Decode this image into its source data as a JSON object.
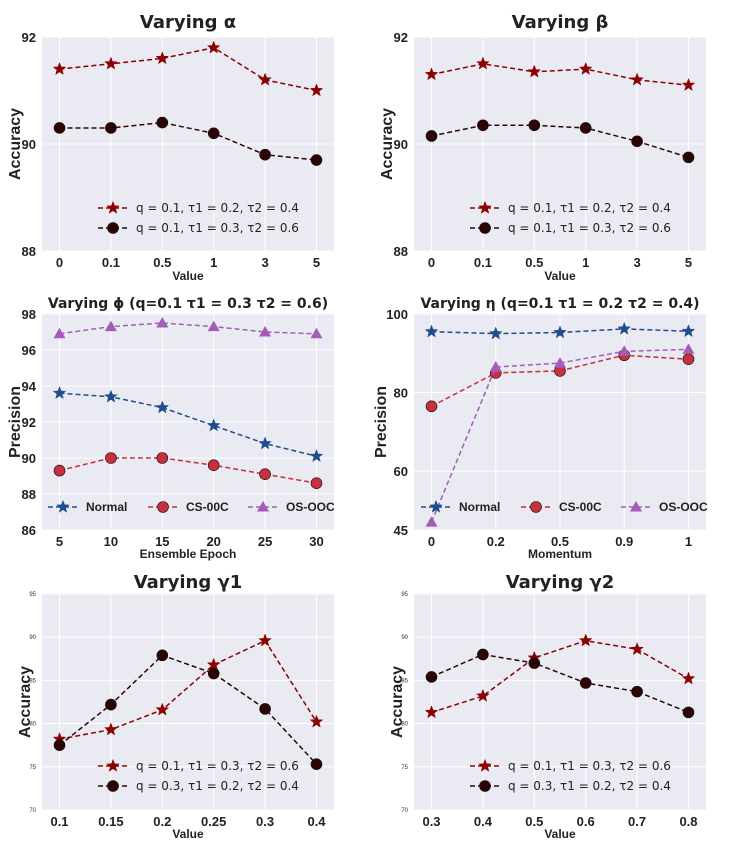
{
  "chart_data": [
    {
      "type": "line",
      "title": "Varying α",
      "xlabel": "Value",
      "ylabel": "Accuracy",
      "categories": [
        "0",
        "0.1",
        "0.5",
        "1",
        "3",
        "5"
      ],
      "ylim": [
        88,
        92
      ],
      "yticks": [
        "88",
        "90",
        "92"
      ],
      "series": [
        {
          "name": "q = 0.1, τ1 = 0.2, τ2 = 0.4",
          "marker": "star",
          "color": "#8b0000",
          "values": [
            91.4,
            91.5,
            91.6,
            91.8,
            91.2,
            91.0
          ]
        },
        {
          "name": "q = 0.1, τ1 = 0.3, τ2 = 0.6",
          "marker": "circle",
          "color": "#2b0505",
          "values": [
            90.3,
            90.3,
            90.4,
            90.2,
            89.8,
            89.7
          ]
        }
      ],
      "legend": "lower-center"
    },
    {
      "type": "line",
      "title": "Varying β",
      "xlabel": "Value",
      "ylabel": "Accuracy",
      "categories": [
        "0",
        "0.1",
        "0.5",
        "1",
        "3",
        "5"
      ],
      "ylim": [
        88,
        92
      ],
      "yticks": [
        "88",
        "90",
        "92"
      ],
      "series": [
        {
          "name": "q = 0.1, τ1 = 0.2, τ2 = 0.4",
          "marker": "star",
          "color": "#8b0000",
          "values": [
            91.3,
            91.5,
            91.35,
            91.4,
            91.2,
            91.1
          ]
        },
        {
          "name": "q = 0.1, τ1 = 0.3, τ2 = 0.6",
          "marker": "circle",
          "color": "#2b0505",
          "values": [
            90.15,
            90.35,
            90.35,
            90.3,
            90.05,
            89.75
          ]
        }
      ],
      "legend": "lower-center"
    },
    {
      "type": "line",
      "title": "Varying ϕ (q=0.1 τ1 = 0.3 τ2 = 0.6)",
      "xlabel": "Ensemble Epoch",
      "ylabel": "Precision",
      "categories": [
        "5",
        "10",
        "15",
        "20",
        "25",
        "30"
      ],
      "ylim": [
        86,
        98
      ],
      "yticks": [
        "86",
        "88",
        "90",
        "92",
        "94",
        "96",
        "98"
      ],
      "series": [
        {
          "name": "Normal",
          "marker": "star",
          "color": "#1f4e8c",
          "values": [
            93.6,
            93.4,
            92.8,
            91.8,
            90.8,
            90.1
          ]
        },
        {
          "name": "CS-00C",
          "marker": "circle",
          "color": "#c8303f",
          "values": [
            89.3,
            90.0,
            90.0,
            89.6,
            89.1,
            88.6
          ]
        },
        {
          "name": "OS-OOC",
          "marker": "triangle",
          "color": "#a45cb8",
          "values": [
            96.9,
            97.3,
            97.5,
            97.3,
            97.0,
            96.9
          ]
        }
      ],
      "legend": "bottom"
    },
    {
      "type": "line",
      "title": "Varying η (q=0.1 τ1 = 0.2 τ2 = 0.4)",
      "xlabel": "Momentum",
      "ylabel": "Precision",
      "categories": [
        "0",
        "0.2",
        "0.5",
        "0.9",
        "1"
      ],
      "ylim": [
        45,
        100
      ],
      "yticks": [
        "45",
        "60",
        "80",
        "100"
      ],
      "series": [
        {
          "name": "Normal",
          "marker": "star",
          "color": "#1f4e8c",
          "values": [
            95.5,
            95.0,
            95.3,
            96.2,
            95.6
          ]
        },
        {
          "name": "CS-00C",
          "marker": "circle",
          "color": "#c8303f",
          "values": [
            76.5,
            85.0,
            85.5,
            89.5,
            88.5
          ]
        },
        {
          "name": "OS-OOC",
          "marker": "triangle",
          "color": "#a45cb8",
          "values": [
            47.0,
            86.5,
            87.5,
            90.5,
            91.0
          ]
        }
      ],
      "legend": "bottom"
    },
    {
      "type": "line",
      "title": "Varying γ1",
      "xlabel": "Value",
      "ylabel": "Accuracy",
      "categories": [
        "0.1",
        "0.15",
        "0.2",
        "0.25",
        "0.3",
        "0.4"
      ],
      "ylim": [
        70,
        95
      ],
      "yticks": [
        "70",
        "75",
        "80",
        "85",
        "90",
        "95"
      ],
      "series": [
        {
          "name": "q = 0.1, τ1 = 0.3, τ2 = 0.6",
          "marker": "star",
          "color": "#8b0000",
          "values": [
            78.2,
            79.3,
            81.6,
            86.8,
            89.6,
            80.2
          ]
        },
        {
          "name": "q = 0.3, τ1 = 0.2, τ2 = 0.4",
          "marker": "circle",
          "color": "#2b0505",
          "values": [
            77.5,
            82.2,
            87.9,
            85.8,
            81.7,
            75.3
          ]
        }
      ],
      "legend": "lower-center"
    },
    {
      "type": "line",
      "title": "Varying γ2",
      "xlabel": "Value",
      "ylabel": "Accuracy",
      "categories": [
        "0.3",
        "0.4",
        "0.5",
        "0.6",
        "0.7",
        "0.8"
      ],
      "ylim": [
        70,
        95
      ],
      "yticks": [
        "70",
        "75",
        "80",
        "85",
        "90",
        "95"
      ],
      "series": [
        {
          "name": "q = 0.1, τ1 = 0.3, τ2 = 0.6",
          "marker": "star",
          "color": "#8b0000",
          "values": [
            81.3,
            83.2,
            87.6,
            89.6,
            88.6,
            85.2
          ]
        },
        {
          "name": "q = 0.3, τ1 = 0.2, τ2 = 0.4",
          "marker": "circle",
          "color": "#2b0505",
          "values": [
            85.4,
            88.0,
            87.0,
            84.7,
            83.7,
            81.3
          ]
        }
      ],
      "legend": "lower-center"
    }
  ]
}
